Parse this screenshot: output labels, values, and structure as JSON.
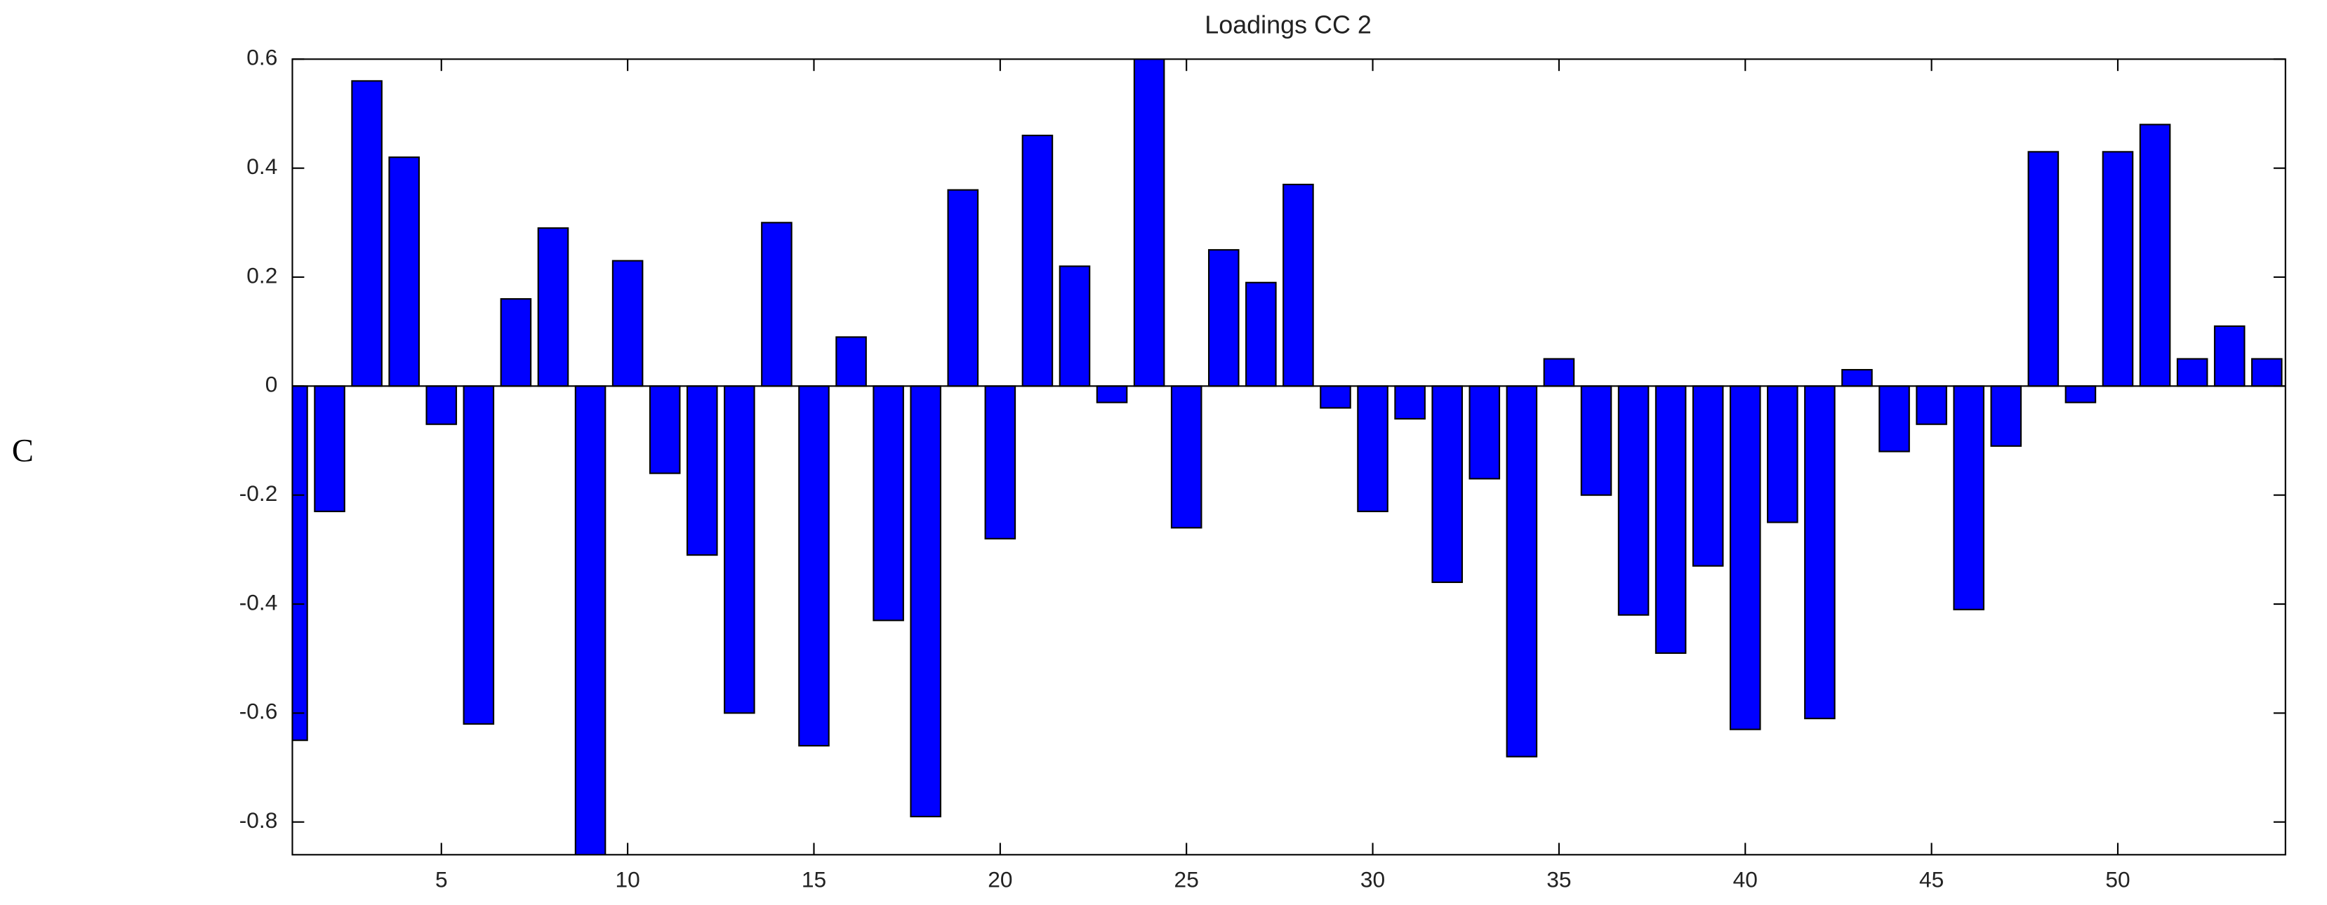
{
  "panel_label": "C",
  "chart_data": {
    "type": "bar",
    "title": "Loadings CC 2",
    "x": [
      1,
      2,
      3,
      4,
      5,
      6,
      7,
      8,
      9,
      10,
      11,
      12,
      13,
      14,
      15,
      16,
      17,
      18,
      19,
      20,
      21,
      22,
      23,
      24,
      25,
      26,
      27,
      28,
      29,
      30,
      31,
      32,
      33,
      34,
      35,
      36,
      37,
      38,
      39,
      40,
      41,
      42,
      43,
      44,
      45,
      46,
      47,
      48,
      49,
      50,
      51,
      52,
      53,
      54
    ],
    "values": [
      -0.65,
      -0.23,
      0.56,
      0.42,
      -0.07,
      -0.62,
      0.16,
      0.29,
      -0.87,
      0.23,
      -0.16,
      -0.31,
      -0.6,
      0.3,
      -0.66,
      0.09,
      -0.43,
      -0.79,
      0.36,
      -0.28,
      0.46,
      0.22,
      -0.03,
      0.62,
      -0.26,
      0.25,
      0.19,
      0.37,
      -0.04,
      -0.23,
      -0.06,
      -0.36,
      -0.17,
      -0.68,
      0.05,
      -0.2,
      -0.42,
      -0.49,
      -0.33,
      -0.63,
      -0.25,
      -0.61,
      0.03,
      -0.12,
      -0.07,
      -0.41,
      -0.11,
      0.43,
      -0.03,
      0.43,
      0.48,
      0.05,
      0.11,
      0.05
    ],
    "color": "#0000ff",
    "xlim": [
      1,
      54.5
    ],
    "xticks": [
      5,
      10,
      15,
      20,
      25,
      30,
      35,
      40,
      45,
      50
    ],
    "ylim": [
      -0.86,
      0.6
    ],
    "yticks": [
      -0.8,
      -0.6,
      -0.4,
      -0.2,
      0,
      0.2,
      0.4,
      0.6
    ],
    "grid": false
  }
}
